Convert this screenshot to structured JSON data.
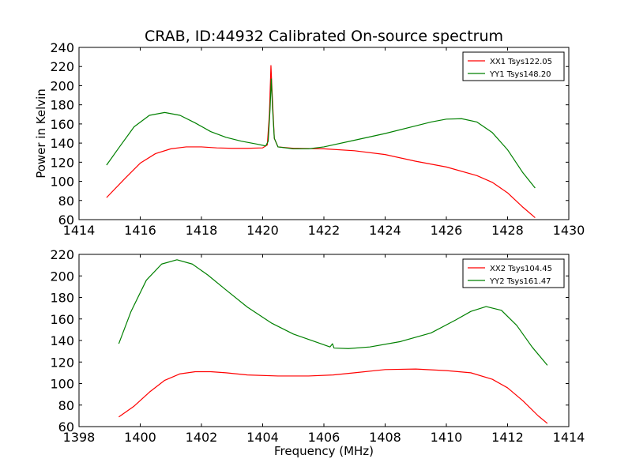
{
  "figure": {
    "title": "CRAB, ID:44932 Calibrated On-source spectrum",
    "xlabel": "Frequency (MHz)",
    "ylabel": "Power in Kelvin"
  },
  "chart_data": [
    {
      "type": "line",
      "panel": "top",
      "title": "CRAB, ID:44932 Calibrated On-source spectrum",
      "xlabel": "",
      "ylabel": "Power in Kelvin",
      "xlim": [
        1414,
        1430
      ],
      "ylim": [
        60,
        240
      ],
      "xticks": [
        1414,
        1416,
        1418,
        1420,
        1422,
        1424,
        1426,
        1428,
        1430
      ],
      "yticks": [
        60,
        80,
        100,
        120,
        140,
        160,
        180,
        200,
        220,
        240
      ],
      "grid": false,
      "legend_position": "top-right",
      "series": [
        {
          "name": "XX1 Tsys122.05",
          "color": "#ff0000",
          "points": [
            [
              1414.9,
              83
            ],
            [
              1415.5,
              103
            ],
            [
              1416.0,
              119
            ],
            [
              1416.5,
              129
            ],
            [
              1417.0,
              134
            ],
            [
              1417.5,
              136
            ],
            [
              1418.0,
              136
            ],
            [
              1418.5,
              135
            ],
            [
              1419.0,
              134.5
            ],
            [
              1419.5,
              134.5
            ],
            [
              1420.0,
              135
            ],
            [
              1420.15,
              138
            ],
            [
              1420.22,
              170
            ],
            [
              1420.27,
              221
            ],
            [
              1420.32,
              185
            ],
            [
              1420.38,
              145
            ],
            [
              1420.5,
              136
            ],
            [
              1421.0,
              134.5
            ],
            [
              1422.0,
              134
            ],
            [
              1423.0,
              132
            ],
            [
              1424.0,
              128
            ],
            [
              1425.0,
              121
            ],
            [
              1426.0,
              115
            ],
            [
              1427.0,
              106
            ],
            [
              1427.5,
              99
            ],
            [
              1428.0,
              88
            ],
            [
              1428.5,
              73
            ],
            [
              1428.9,
              62
            ]
          ]
        },
        {
          "name": "YY1 Tsys148.20",
          "color": "#008000",
          "points": [
            [
              1414.9,
              117
            ],
            [
              1415.3,
              135
            ],
            [
              1415.8,
              157
            ],
            [
              1416.3,
              169
            ],
            [
              1416.8,
              172
            ],
            [
              1417.3,
              169
            ],
            [
              1417.8,
              161
            ],
            [
              1418.3,
              152
            ],
            [
              1418.8,
              146
            ],
            [
              1419.3,
              142
            ],
            [
              1419.8,
              139
            ],
            [
              1420.1,
              137
            ],
            [
              1420.18,
              142
            ],
            [
              1420.24,
              175
            ],
            [
              1420.28,
              207
            ],
            [
              1420.32,
              178
            ],
            [
              1420.38,
              145
            ],
            [
              1420.5,
              136
            ],
            [
              1421.0,
              134
            ],
            [
              1421.5,
              134
            ],
            [
              1422.0,
              136
            ],
            [
              1423.0,
              143
            ],
            [
              1424.0,
              150
            ],
            [
              1425.0,
              158
            ],
            [
              1425.5,
              162
            ],
            [
              1426.0,
              165
            ],
            [
              1426.5,
              165.5
            ],
            [
              1427.0,
              162
            ],
            [
              1427.5,
              151
            ],
            [
              1428.0,
              133
            ],
            [
              1428.5,
              109
            ],
            [
              1428.9,
              93
            ]
          ]
        }
      ]
    },
    {
      "type": "line",
      "panel": "bottom",
      "title": "",
      "xlabel": "Frequency (MHz)",
      "ylabel": "",
      "xlim": [
        1398,
        1414
      ],
      "ylim": [
        60,
        220
      ],
      "xticks": [
        1398,
        1400,
        1402,
        1404,
        1406,
        1408,
        1410,
        1412,
        1414
      ],
      "yticks": [
        60,
        80,
        100,
        120,
        140,
        160,
        180,
        200,
        220
      ],
      "grid": false,
      "legend_position": "top-right",
      "series": [
        {
          "name": "XX2 Tsys104.45",
          "color": "#ff0000",
          "points": [
            [
              1399.3,
              69
            ],
            [
              1399.8,
              79
            ],
            [
              1400.3,
              92
            ],
            [
              1400.8,
              103
            ],
            [
              1401.3,
              109
            ],
            [
              1401.8,
              111
            ],
            [
              1402.3,
              111
            ],
            [
              1402.8,
              110
            ],
            [
              1403.5,
              108
            ],
            [
              1404.5,
              107
            ],
            [
              1405.5,
              107
            ],
            [
              1406.3,
              108
            ],
            [
              1407.0,
              110
            ],
            [
              1408.0,
              113
            ],
            [
              1409.0,
              113.5
            ],
            [
              1410.0,
              112
            ],
            [
              1410.8,
              110
            ],
            [
              1411.5,
              104
            ],
            [
              1412.0,
              96
            ],
            [
              1412.5,
              84
            ],
            [
              1413.0,
              70
            ],
            [
              1413.3,
              63
            ]
          ]
        },
        {
          "name": "YY2 Tsys161.47",
          "color": "#008000",
          "points": [
            [
              1399.3,
              137
            ],
            [
              1399.7,
              167
            ],
            [
              1400.2,
              196
            ],
            [
              1400.7,
              211
            ],
            [
              1401.2,
              215
            ],
            [
              1401.7,
              211
            ],
            [
              1402.2,
              201
            ],
            [
              1402.8,
              187
            ],
            [
              1403.5,
              171
            ],
            [
              1404.3,
              156
            ],
            [
              1405.0,
              146
            ],
            [
              1405.8,
              138
            ],
            [
              1406.2,
              134
            ],
            [
              1406.28,
              137
            ],
            [
              1406.33,
              133
            ],
            [
              1406.8,
              132.5
            ],
            [
              1407.5,
              134
            ],
            [
              1408.5,
              139
            ],
            [
              1409.5,
              147
            ],
            [
              1410.3,
              159
            ],
            [
              1410.8,
              167
            ],
            [
              1411.3,
              171.5
            ],
            [
              1411.8,
              168
            ],
            [
              1412.3,
              154
            ],
            [
              1412.8,
              134
            ],
            [
              1413.3,
              117
            ]
          ]
        }
      ]
    }
  ]
}
